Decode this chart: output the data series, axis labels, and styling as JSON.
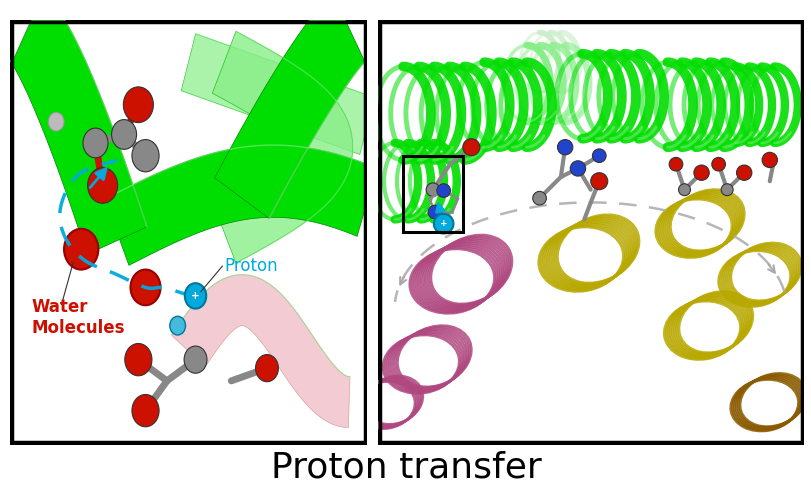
{
  "title": "Proton transfer",
  "title_fontsize": 26,
  "title_fontweight": "normal",
  "bg_color": "#ffffff",
  "figsize": [
    8.12,
    4.94
  ],
  "dpi": 100,
  "green_bright": "#00dd00",
  "green_mid": "#00bb00",
  "green_dark": "#008800",
  "green_light": "#88ee88",
  "pink_light": "#f0c0c8",
  "gray_atom": "#888888",
  "red_atom": "#cc1100",
  "blue_atom": "#2244cc",
  "cyan_arrow": "#00aadd",
  "ring_pink": "#b04880",
  "ring_yellow": "#b8a800",
  "ring_brown": "#8b5a00",
  "arc_gray": "#aaaaaa",
  "black": "#000000",
  "white": "#ffffff",
  "label_proton_color": "#00aadd",
  "label_water_color": "#cc1100"
}
